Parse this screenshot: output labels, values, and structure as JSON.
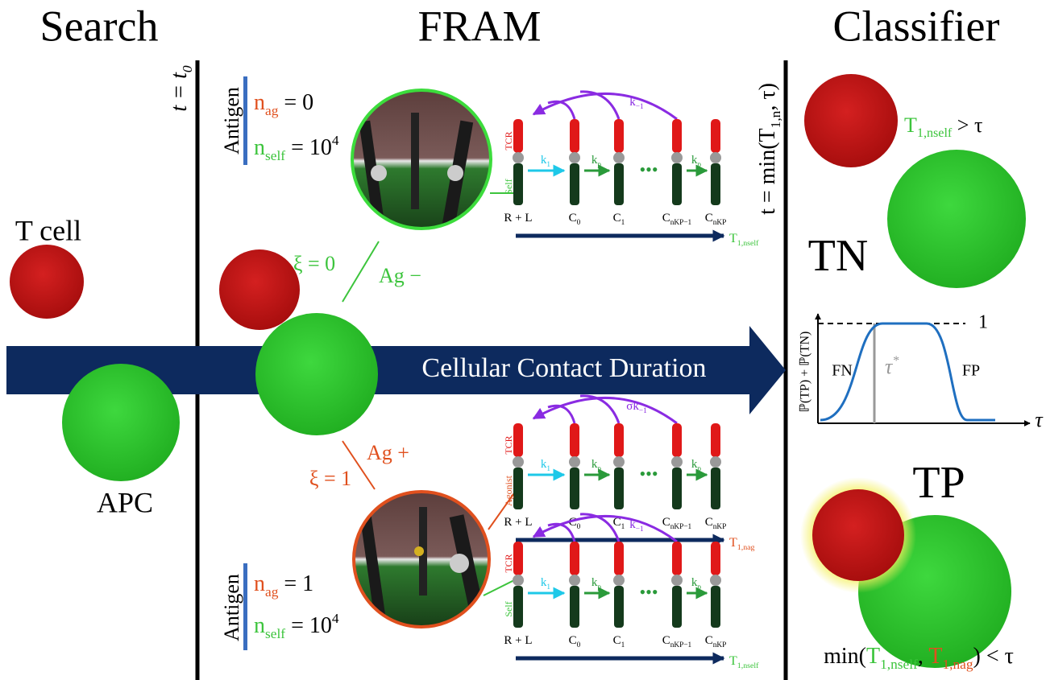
{
  "headers": {
    "search": "Search",
    "fram": "FRAM",
    "classifier": "Classifier"
  },
  "search": {
    "time": [
      {
        "text": "t = t",
        "sub": "0"
      }
    ],
    "t_cell": "T cell",
    "apc": "APC"
  },
  "arrow_label": "Cellular Contact Duration",
  "branches": [
    {
      "xi": "ξ = 0",
      "ag": "Ag −",
      "color": "#3cc43c"
    },
    {
      "xi": "ξ = 1",
      "ag": "Ag +",
      "color": "#e0501e"
    }
  ],
  "antigens": [
    {
      "title": "Antigen",
      "n_ag": [
        {
          "text": "n",
          "sub": "ag",
          "color": "#e0501e"
        },
        {
          "text": " = 0"
        }
      ],
      "n_self": [
        {
          "text": "n",
          "sub": "self",
          "color": "#3cc43c"
        },
        {
          "text": " = 10",
          "sup": "4"
        }
      ]
    },
    {
      "title": "Antigen",
      "n_ag": [
        {
          "text": "n",
          "sub": "ag",
          "color": "#e0501e"
        },
        {
          "text": " = 1"
        }
      ],
      "n_self": [
        {
          "text": "n",
          "sub": "self",
          "color": "#3cc43c"
        },
        {
          "text": " = 10",
          "sup": "4"
        }
      ]
    }
  ],
  "kinetics": [
    {
      "tcr": "TCR",
      "ligand": "Self",
      "ligand_color": "#3cc43c",
      "k_on": [
        {
          "text": "k",
          "sub": "1"
        }
      ],
      "k_p": [
        {
          "text": "k",
          "sub": "p"
        }
      ],
      "k_p2": [
        {
          "text": "k",
          "sub": "p"
        }
      ],
      "k_off": [
        {
          "text": "k",
          "sub": "−1"
        }
      ],
      "dots": "•••",
      "states": [
        [
          {
            "text": "R + L"
          }
        ],
        [
          {
            "text": "C",
            "sub": "0"
          }
        ],
        [
          {
            "text": "C",
            "sub": "1"
          }
        ],
        [
          {
            "text": "C",
            "sub": "nKP−1"
          }
        ],
        [
          {
            "text": "C",
            "sub": "nKP"
          }
        ]
      ],
      "time": [
        {
          "text": "T",
          "sub": "1,nself"
        }
      ],
      "time_color": "#3cc43c"
    },
    {
      "tcr": "TCR",
      "ligand": "Agonist",
      "ligand_color": "#e0501e",
      "k_on": [
        {
          "text": "k",
          "sub": "1"
        }
      ],
      "k_p": [
        {
          "text": "k",
          "sub": "p"
        }
      ],
      "k_p2": [
        {
          "text": "k",
          "sub": "p"
        }
      ],
      "k_off": [
        {
          "text": "σk",
          "sub": "−1"
        }
      ],
      "dots": "•••",
      "states": [
        [
          {
            "text": "R + L"
          }
        ],
        [
          {
            "text": "C",
            "sub": "0"
          }
        ],
        [
          {
            "text": "C",
            "sub": "1"
          }
        ],
        [
          {
            "text": "C",
            "sub": "nKP−1"
          }
        ],
        [
          {
            "text": "C",
            "sub": "nKP"
          }
        ]
      ],
      "time": [
        {
          "text": "T",
          "sub": "1,nag"
        }
      ],
      "time_color": "#e0501e"
    },
    {
      "tcr": "TCR",
      "ligand": "Self",
      "ligand_color": "#3cc43c",
      "k_on": [
        {
          "text": "k",
          "sub": "1"
        }
      ],
      "k_p": [
        {
          "text": "k",
          "sub": "p"
        }
      ],
      "k_p2": [
        {
          "text": "k",
          "sub": "p"
        }
      ],
      "k_off": [
        {
          "text": "k",
          "sub": "−1"
        }
      ],
      "dots": "•••",
      "states": [
        [
          {
            "text": "R + L"
          }
        ],
        [
          {
            "text": "C",
            "sub": "0"
          }
        ],
        [
          {
            "text": "C",
            "sub": "1"
          }
        ],
        [
          {
            "text": "C",
            "sub": "nKP−1"
          }
        ],
        [
          {
            "text": "C",
            "sub": "nKP"
          }
        ]
      ],
      "time": [
        {
          "text": "T",
          "sub": "1,nself"
        }
      ],
      "time_color": "#3cc43c"
    }
  ],
  "classifier": {
    "time": [
      {
        "text": "t = min(T",
        "sub": "1,n"
      },
      {
        "text": ", τ)"
      }
    ],
    "tn_rule": [
      {
        "text": "T",
        "sub": "1,nself",
        "color": "#3cc43c"
      },
      {
        "text": " > τ"
      }
    ],
    "tn": "TN",
    "tp": "TP",
    "plot": {
      "one": "1",
      "fn": "FN",
      "fp": "FP",
      "tau_star": [
        {
          "text": "τ",
          "sup": "*"
        }
      ],
      "ylabel": "ℙ(TP) + ℙ(TN)",
      "xlabel": "τ"
    },
    "tp_rule": [
      {
        "text": "min("
      },
      {
        "text": "T",
        "sub": "1,nself",
        "color": "#3cc43c"
      },
      {
        "text": ", "
      },
      {
        "text": "T",
        "sub": "1,nag",
        "color": "#e0501e"
      },
      {
        "text": ") < τ"
      }
    ]
  }
}
